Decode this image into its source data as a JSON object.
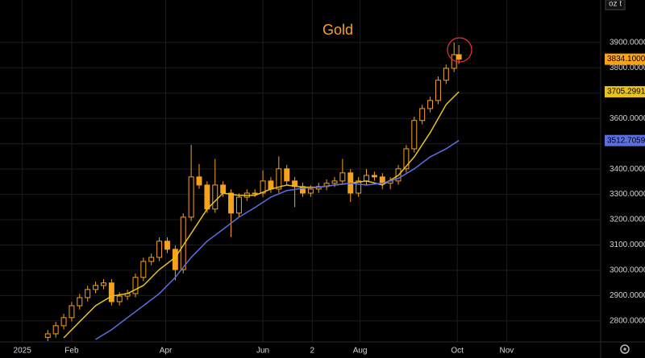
{
  "chart_data": {
    "type": "candlestick",
    "title": "Gold",
    "unit_label": "oz t",
    "color": "#f7a21b",
    "grid": true,
    "x": [
      17,
      22,
      27,
      32,
      37,
      42,
      47,
      52,
      57,
      62,
      67,
      72,
      77,
      82,
      87,
      92,
      97,
      102,
      107,
      112,
      117,
      122,
      127,
      132,
      137,
      142,
      147,
      152,
      157,
      162,
      167,
      172,
      177,
      182,
      187,
      192,
      197,
      202,
      207,
      212,
      217,
      222,
      227,
      232,
      237,
      242,
      247,
      252,
      257,
      262,
      267,
      272,
      275
    ],
    "open": [
      2735,
      2749,
      2781,
      2813,
      2860,
      2892,
      2924,
      2940,
      2950,
      2876,
      2898,
      2908,
      2972,
      3035,
      3051,
      3115,
      3083,
      3003,
      3210,
      3369,
      3337,
      3242,
      3337,
      3305,
      3226,
      3289,
      3305,
      3305,
      3353,
      3321,
      3401,
      3353,
      3331,
      3305,
      3321,
      3331,
      3344,
      3353,
      3385,
      3305,
      3353,
      3375,
      3369,
      3344,
      3353,
      3401,
      3480,
      3592,
      3639,
      3671,
      3751,
      3798,
      3852
    ],
    "high": [
      2764,
      2796,
      2828,
      2875,
      2907,
      2939,
      2955,
      2965,
      2965,
      2913,
      2923,
      2987,
      3050,
      3066,
      3130,
      3130,
      3098,
      3225,
      3496,
      3420,
      3352,
      3440,
      3352,
      3320,
      3304,
      3320,
      3320,
      3395,
      3368,
      3450,
      3416,
      3368,
      3346,
      3336,
      3346,
      3359,
      3368,
      3440,
      3400,
      3368,
      3400,
      3390,
      3384,
      3368,
      3416,
      3495,
      3607,
      3654,
      3686,
      3766,
      3813,
      3900,
      3890
    ],
    "low": [
      2720,
      2734,
      2766,
      2798,
      2845,
      2877,
      2909,
      2925,
      2861,
      2861,
      2883,
      2893,
      2957,
      3020,
      3036,
      3068,
      2960,
      2988,
      3195,
      3322,
      3227,
      3227,
      3290,
      3131,
      3211,
      3274,
      3290,
      3290,
      3306,
      3306,
      3338,
      3250,
      3290,
      3290,
      3306,
      3316,
      3329,
      3338,
      3270,
      3290,
      3338,
      3354,
      3320,
      3320,
      3338,
      3386,
      3465,
      3577,
      3624,
      3656,
      3736,
      3783,
      3815
    ],
    "close": [
      2749,
      2781,
      2813,
      2860,
      2892,
      2924,
      2940,
      2950,
      2876,
      2898,
      2908,
      2972,
      3035,
      3051,
      3115,
      3083,
      3003,
      3210,
      3369,
      3337,
      3242,
      3337,
      3305,
      3226,
      3289,
      3305,
      3305,
      3353,
      3321,
      3401,
      3353,
      3331,
      3305,
      3321,
      3331,
      3344,
      3353,
      3385,
      3305,
      3353,
      3375,
      3369,
      3344,
      3353,
      3401,
      3480,
      3592,
      3639,
      3671,
      3751,
      3798,
      3852,
      3834.1
    ],
    "value_labels": [
      null,
      null,
      null,
      null,
      null,
      null,
      null,
      null,
      null,
      null,
      null,
      null,
      null,
      null,
      null,
      null,
      null,
      null,
      null,
      null,
      null,
      null,
      null,
      null,
      null,
      null,
      null,
      null,
      null,
      null,
      null,
      null,
      null,
      null,
      null,
      null,
      null,
      null,
      null,
      null,
      null,
      null,
      null,
      null,
      null,
      null,
      null,
      null,
      null,
      null,
      null,
      null,
      "3834.1000"
    ],
    "overlays": [
      {
        "color": "#e8c31a",
        "x": [
          27,
          37,
          47,
          57,
          67,
          77,
          87,
          97,
          107,
          117,
          127,
          137,
          147,
          157,
          167,
          177,
          187,
          197,
          207,
          217,
          227,
          237,
          247,
          257,
          267,
          275
        ],
        "values": [
          2733,
          2797,
          2860,
          2898,
          2908,
          2940,
          3003,
          3051,
          3146,
          3242,
          3305,
          3296,
          3296,
          3321,
          3337,
          3328,
          3328,
          3337,
          3344,
          3353,
          3337,
          3375,
          3448,
          3544,
          3655,
          3705.2991
        ],
        "value_labels": [
          null,
          null,
          null,
          null,
          null,
          null,
          null,
          null,
          null,
          null,
          null,
          null,
          null,
          null,
          null,
          null,
          null,
          null,
          null,
          null,
          null,
          null,
          null,
          null,
          null,
          "3705.2991"
        ]
      },
      {
        "color": "#5b6ee1",
        "x": [
          47,
          57,
          67,
          77,
          87,
          97,
          107,
          117,
          127,
          137,
          147,
          157,
          167,
          177,
          187,
          197,
          207,
          217,
          227,
          237,
          247,
          257,
          267,
          275
        ],
        "values": [
          2727,
          2765,
          2813,
          2860,
          2908,
          2972,
          3051,
          3115,
          3162,
          3210,
          3248,
          3289,
          3315,
          3324,
          3328,
          3337,
          3344,
          3337,
          3344,
          3363,
          3401,
          3448,
          3480,
          3512.7059
        ],
        "value_labels": [
          null,
          null,
          null,
          null,
          null,
          null,
          null,
          null,
          null,
          null,
          null,
          null,
          null,
          null,
          null,
          null,
          null,
          null,
          null,
          null,
          null,
          null,
          null,
          "3512.7059"
        ]
      }
    ],
    "xlim": [
      -13,
      364
    ],
    "xticks": [
      {
        "value": 1,
        "label": "2025"
      },
      {
        "value": 32,
        "label": "Feb"
      },
      {
        "value": 91,
        "label": "Apr"
      },
      {
        "value": 152,
        "label": "Jun"
      },
      {
        "value": 183,
        "label": "2"
      },
      {
        "value": 213,
        "label": "Aug"
      },
      {
        "value": 274,
        "label": "Oct"
      },
      {
        "value": 305,
        "label": "Nov"
      }
    ],
    "ylim": [
      2717,
      4068
    ],
    "yticks": [
      {
        "value": 2800,
        "label": "2800.0000"
      },
      {
        "value": 2900,
        "label": "2900.0000"
      },
      {
        "value": 3000,
        "label": "3000.0000"
      },
      {
        "value": 3100,
        "label": "3100.0000"
      },
      {
        "value": 3200,
        "label": "3200.0000"
      },
      {
        "value": 3300,
        "label": "3300.0000"
      },
      {
        "value": 3400,
        "label": "3400.0000"
      },
      {
        "value": 3500,
        "label": "3500.0000"
      },
      {
        "value": 3600,
        "label": "3600.0000"
      },
      {
        "value": 3700,
        "label": "3700.0000"
      },
      {
        "value": 3800,
        "label": "3800.0000"
      },
      {
        "value": 3900,
        "label": "3900.0000"
      }
    ]
  }
}
